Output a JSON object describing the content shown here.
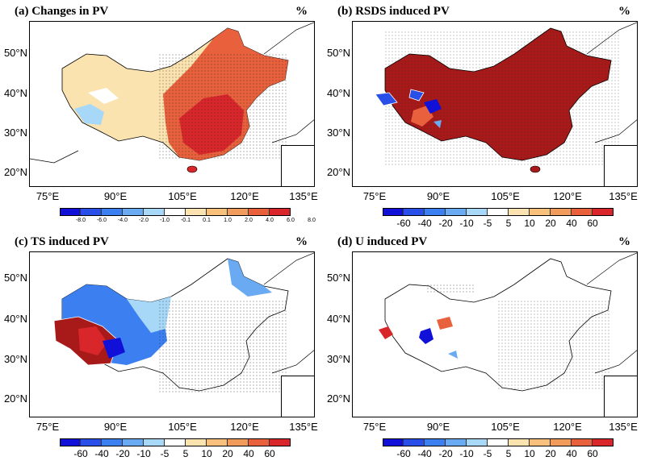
{
  "panels": [
    {
      "id": "a",
      "title": "(a) Changes in PV",
      "unit": "%"
    },
    {
      "id": "b",
      "title": "(b) RSDS induced PV",
      "unit": "%"
    },
    {
      "id": "c",
      "title": "(c) TS induced PV",
      "unit": "%"
    },
    {
      "id": "d",
      "title": "(d) U induced PV",
      "unit": "%"
    }
  ],
  "lat_labels": [
    "50°N",
    "40°N",
    "30°N",
    "20°N"
  ],
  "lon_labels": [
    "75°E",
    "90°E",
    "105°E",
    "120°E",
    "135°E"
  ],
  "colorbar_a": {
    "ticks": [
      "-8.0",
      "-6.0",
      "-4.0",
      "-2.0",
      "-1.0",
      "-0.1",
      "0.1",
      "1.0",
      "2.0",
      "4.0",
      "6.0",
      "8.0"
    ],
    "colors": [
      "#1010d8",
      "#2a4fe8",
      "#3c7ff0",
      "#6aaaf2",
      "#a8d8f8",
      "#ffffff",
      "#fbe3b0",
      "#f7c17c",
      "#f29c5c",
      "#e8603c",
      "#d8262a"
    ]
  },
  "colorbar_b": {
    "ticks": [
      "-60",
      "-40",
      "-20",
      "-10",
      "-5",
      "5",
      "10",
      "20",
      "40",
      "60"
    ],
    "colors": [
      "#1010d8",
      "#2a4fe8",
      "#3c7ff0",
      "#6aaaf2",
      "#a8d8f8",
      "#ffffff",
      "#fbe3b0",
      "#f7c17c",
      "#f29c5c",
      "#e8603c",
      "#d8262a"
    ]
  }
}
